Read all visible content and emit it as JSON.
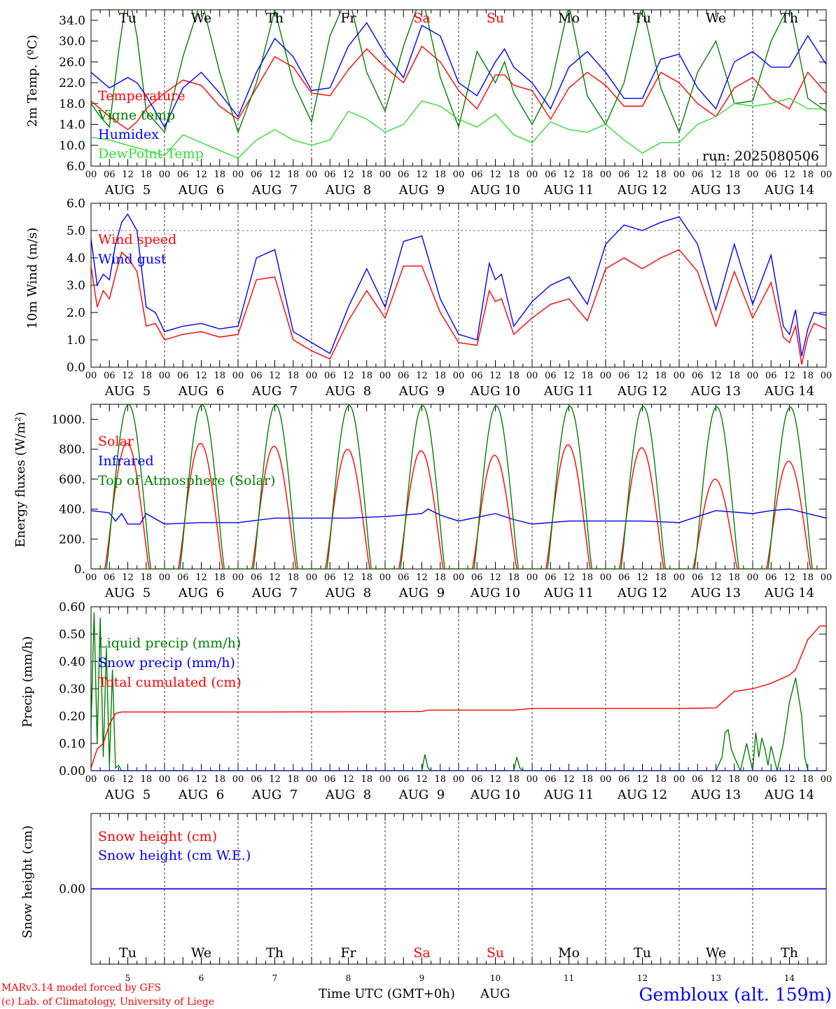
{
  "colors": {
    "red": "#ff0000",
    "green": "#008000",
    "blue": "#0000ff",
    "light_green": "#33dd33",
    "black": "#000000"
  },
  "x_axis": {
    "hour_labels": [
      "00",
      "06",
      "12",
      "18"
    ],
    "last_hour_label": "00",
    "day_labels": [
      "AUG  5",
      "AUG  6",
      "AUG  7",
      "AUG  8",
      "AUG  9",
      "AUG 10",
      "AUG 11",
      "AUG 12",
      "AUG 13",
      "AUG 14"
    ],
    "weekdays": [
      "Tu",
      "We",
      "Th",
      "Fr",
      "Sa",
      "Su",
      "Mo",
      "Tu",
      "We",
      "Th"
    ],
    "weekday_colors": [
      "#000000",
      "#000000",
      "#000000",
      "#000000",
      "#ff0000",
      "#ff0000",
      "#000000",
      "#000000",
      "#000000",
      "#000000"
    ],
    "day_numbers": [
      "5",
      "6",
      "7",
      "8",
      "9",
      "10",
      "11",
      "12",
      "13",
      "14"
    ],
    "title": "Time UTC (GMT+0h)",
    "month": "AUG"
  },
  "footer": {
    "model": "MARv3.14 model forced by GFS",
    "credit": "(c) Lab. of Climatology, University of Liege",
    "station": "Gembloux (alt. 159m)"
  },
  "chart_data": [
    {
      "type": "line",
      "id": "temperature",
      "ylabel": "2m Temp. (ºC)",
      "ylim": [
        6,
        36
      ],
      "ytick_values": [
        6,
        10,
        14,
        18,
        22,
        26,
        30,
        34
      ],
      "ytick_labels": [
        "6.0",
        "10.0",
        "14.0",
        "18.0",
        "22.0",
        "26.0",
        "30.0",
        "34.0"
      ],
      "x_unit": "hours since 2025-08-05 00 UTC",
      "xlim": [
        0,
        240
      ],
      "grid": "vertical dashed day lines",
      "run_label": "run: 2025080506",
      "series": [
        {
          "name": "Temperature",
          "color": "#ff0000",
          "x": [
            0,
            6,
            12,
            15,
            18,
            24,
            30,
            36,
            42,
            48,
            54,
            60,
            66,
            72,
            78,
            84,
            90,
            96,
            102,
            108,
            114,
            120,
            126,
            132,
            135,
            138,
            144,
            150,
            156,
            162,
            168,
            174,
            180,
            186,
            192,
            198,
            204,
            210,
            216,
            222,
            228,
            234,
            240
          ],
          "y": [
            18.5,
            15.5,
            13,
            14.5,
            17,
            20,
            22.5,
            21.5,
            17.5,
            15,
            21,
            27,
            25,
            20,
            19.5,
            24.5,
            28.5,
            25,
            22,
            29,
            26,
            20.5,
            17,
            23.5,
            23.5,
            21.5,
            20.5,
            15,
            21,
            24,
            21.5,
            17.5,
            17.5,
            24,
            22,
            18,
            15.5,
            21,
            23,
            19,
            17,
            24,
            20
          ]
        },
        {
          "name": "Vigne temp",
          "color": "#008000",
          "x": [
            0,
            3,
            6,
            9,
            12,
            15,
            18,
            24,
            30,
            36,
            42,
            48,
            54,
            60,
            66,
            72,
            78,
            84,
            90,
            96,
            102,
            108,
            114,
            120,
            126,
            132,
            135,
            138,
            144,
            150,
            156,
            162,
            168,
            174,
            180,
            186,
            192,
            198,
            204,
            210,
            216,
            222,
            228,
            234,
            240
          ],
          "y": [
            18,
            15.5,
            13.5,
            28,
            40,
            31,
            16.5,
            12.5,
            27,
            38,
            24,
            12.5,
            22,
            36,
            22,
            14.5,
            31,
            39,
            24,
            16.5,
            29,
            39,
            23,
            13.5,
            28,
            22,
            26,
            20,
            14,
            21,
            37,
            19.5,
            14,
            22,
            37,
            21,
            12.5,
            24,
            30,
            18,
            18.5,
            30,
            37,
            19,
            16.5
          ]
        },
        {
          "name": "Humidex",
          "color": "#0000ff",
          "x": [
            0,
            6,
            12,
            15,
            18,
            24,
            30,
            36,
            42,
            48,
            54,
            60,
            66,
            72,
            78,
            84,
            90,
            96,
            102,
            108,
            114,
            120,
            126,
            132,
            135,
            138,
            144,
            150,
            156,
            162,
            168,
            174,
            180,
            186,
            192,
            198,
            204,
            210,
            216,
            222,
            228,
            234,
            240
          ],
          "y": [
            24,
            21,
            23,
            22,
            19.5,
            13.5,
            21,
            24,
            20,
            15.5,
            24,
            30.5,
            27,
            20.5,
            21,
            29,
            33.5,
            27.5,
            23,
            33,
            31,
            22,
            19.5,
            26,
            28.5,
            25,
            22,
            17,
            25,
            28,
            24,
            19,
            19,
            26.5,
            27.5,
            21,
            17,
            26,
            28,
            25,
            25,
            31,
            25.5
          ]
        },
        {
          "name": "DewPoint Temp",
          "color": "#33dd33",
          "x": [
            0,
            6,
            12,
            18,
            24,
            30,
            36,
            42,
            48,
            54,
            60,
            66,
            72,
            78,
            84,
            90,
            96,
            102,
            108,
            114,
            120,
            126,
            132,
            138,
            144,
            150,
            156,
            162,
            168,
            174,
            180,
            186,
            192,
            198,
            204,
            210,
            216,
            222,
            228,
            234,
            240
          ],
          "y": [
            11.5,
            11,
            10,
            9,
            8,
            12,
            10.5,
            9,
            7.5,
            11,
            13,
            11,
            10,
            11,
            16.5,
            15,
            12.5,
            14,
            18.5,
            17.5,
            15,
            13.5,
            16,
            12,
            10.5,
            14.5,
            13,
            12.5,
            14,
            11,
            8.5,
            10.5,
            10.5,
            14,
            15.5,
            18,
            17.5,
            18,
            19,
            17,
            17
          ]
        }
      ]
    },
    {
      "type": "line",
      "id": "wind",
      "ylabel": "10m Wind (m/s)",
      "ylim": [
        0,
        6
      ],
      "ytick_values": [
        0,
        1,
        2,
        3,
        4,
        5,
        6
      ],
      "ytick_labels": [
        "0.0",
        "1.0",
        "2.0",
        "3.0",
        "4.0",
        "5.0",
        "6.0"
      ],
      "x_unit": "hours since 2025-08-05 00 UTC",
      "xlim": [
        0,
        240
      ],
      "reference_line": 5.0,
      "series": [
        {
          "name": "Wind speed",
          "color": "#ff0000",
          "x": [
            0,
            2,
            4,
            6,
            8,
            10,
            12,
            15,
            18,
            21,
            24,
            30,
            36,
            42,
            48,
            54,
            60,
            66,
            72,
            78,
            84,
            90,
            96,
            102,
            108,
            114,
            120,
            126,
            130,
            132,
            134,
            138,
            144,
            150,
            156,
            162,
            168,
            174,
            180,
            186,
            192,
            198,
            204,
            210,
            216,
            222,
            226,
            228,
            230,
            232,
            234,
            236,
            240
          ],
          "y": [
            3.7,
            2.2,
            2.8,
            2.5,
            3.4,
            4.2,
            4.0,
            3.5,
            1.5,
            1.6,
            1.0,
            1.2,
            1.3,
            1.1,
            1.2,
            3.2,
            3.3,
            1.0,
            0.6,
            0.3,
            1.7,
            2.8,
            1.8,
            3.7,
            3.7,
            2.0,
            0.9,
            0.8,
            2.8,
            2.4,
            2.5,
            1.2,
            1.8,
            2.3,
            2.5,
            1.7,
            3.6,
            4.0,
            3.6,
            4.0,
            4.3,
            3.5,
            1.5,
            3.5,
            1.8,
            3.1,
            1.1,
            0.9,
            1.5,
            0.1,
            1.1,
            1.6,
            1.4
          ]
        },
        {
          "name": "Wind gust",
          "color": "#0000ff",
          "x": [
            0,
            2,
            4,
            6,
            8,
            10,
            12,
            15,
            18,
            21,
            24,
            30,
            36,
            42,
            48,
            54,
            60,
            66,
            72,
            78,
            84,
            90,
            96,
            102,
            108,
            114,
            120,
            126,
            130,
            132,
            134,
            138,
            144,
            150,
            156,
            162,
            168,
            174,
            180,
            186,
            192,
            198,
            204,
            210,
            216,
            222,
            226,
            228,
            230,
            232,
            234,
            236,
            240
          ],
          "y": [
            4.7,
            3.0,
            3.4,
            3.2,
            4.5,
            5.3,
            5.6,
            5.0,
            2.2,
            2.0,
            1.3,
            1.5,
            1.6,
            1.4,
            1.5,
            4.0,
            4.3,
            1.3,
            0.9,
            0.5,
            2.2,
            3.6,
            2.2,
            4.6,
            4.8,
            2.5,
            1.2,
            1.0,
            3.8,
            3.2,
            3.4,
            1.5,
            2.4,
            3.0,
            3.3,
            2.3,
            4.5,
            5.2,
            5.0,
            5.3,
            5.5,
            4.5,
            2.1,
            4.5,
            2.3,
            4.1,
            1.5,
            1.2,
            2.1,
            0.4,
            1.4,
            2.0,
            1.9
          ]
        }
      ]
    },
    {
      "type": "line",
      "id": "energy",
      "ylabel": "Energy fluxes (W/m²)",
      "ylim": [
        0,
        1100
      ],
      "ytick_values": [
        0,
        200,
        400,
        600,
        800,
        1000
      ],
      "ytick_labels": [
        "0.",
        "200.",
        "400.",
        "600.",
        "800.",
        "1000."
      ],
      "x_unit": "hours since 2025-08-05 00 UTC",
      "xlim": [
        0,
        240
      ],
      "series": [
        {
          "name": "Solar",
          "color": "#ff0000",
          "daily_peak": [
            840,
            840,
            820,
            800,
            790,
            760,
            830,
            810,
            600,
            720
          ]
        },
        {
          "name": "Infrared",
          "color": "#0000ff",
          "x": [
            0,
            6,
            8,
            10,
            12,
            16,
            18,
            24,
            36,
            48,
            60,
            72,
            84,
            96,
            108,
            110,
            114,
            120,
            132,
            138,
            144,
            156,
            168,
            180,
            192,
            204,
            216,
            222,
            228,
            240
          ],
          "y": [
            390,
            375,
            320,
            370,
            300,
            300,
            370,
            300,
            310,
            310,
            340,
            340,
            340,
            350,
            370,
            400,
            360,
            320,
            370,
            330,
            300,
            320,
            320,
            320,
            310,
            390,
            370,
            390,
            400,
            340
          ]
        },
        {
          "name": "Top of Atmosphere (Solar)",
          "color": "#008000",
          "daily_peak": [
            1100,
            1098,
            1096,
            1094,
            1092,
            1090,
            1088,
            1086,
            1084,
            1082
          ]
        }
      ]
    },
    {
      "type": "line",
      "id": "precip",
      "ylabel": "Precip (mm/h)",
      "ylim": [
        0,
        0.6
      ],
      "ytick_values": [
        0,
        0.1,
        0.2,
        0.3,
        0.4,
        0.5,
        0.6
      ],
      "ytick_labels": [
        "0.00",
        "0.10",
        "0.20",
        "0.30",
        "0.40",
        "0.50",
        "0.60"
      ],
      "x_unit": "hours since 2025-08-05 00 UTC",
      "xlim": [
        0,
        240
      ],
      "series": [
        {
          "name": "Liquid precip (mm/h)",
          "color": "#008000",
          "x": [
            0,
            1,
            2,
            3,
            4,
            5,
            6,
            7,
            8,
            9,
            10,
            12,
            108,
            109,
            110,
            111,
            138,
            139,
            140,
            141,
            204,
            206,
            207,
            208,
            209,
            210,
            212,
            214,
            216,
            217,
            218,
            219,
            220,
            221,
            222,
            224,
            226,
            228,
            230,
            232,
            233,
            234,
            240
          ],
          "y": [
            0.15,
            0.58,
            0.1,
            0.56,
            0.05,
            0.45,
            0.02,
            0.37,
            0.01,
            0.02,
            0,
            0,
            0,
            0.06,
            0.01,
            0,
            0,
            0.05,
            0.01,
            0,
            0,
            0.05,
            0.14,
            0.15,
            0.08,
            0.05,
            0,
            0.1,
            0,
            0.14,
            0.05,
            0.12,
            0.08,
            0.02,
            0.09,
            0,
            0.1,
            0.25,
            0.34,
            0.2,
            0.05,
            0,
            0
          ]
        },
        {
          "name": "Snow precip (mm/h)",
          "color": "#0000ff",
          "x": [
            0,
            240
          ],
          "y": [
            0,
            0
          ]
        },
        {
          "name": "Total cumulated (cm)",
          "color": "#ff0000",
          "x": [
            0,
            2,
            4,
            6,
            8,
            10,
            12,
            24,
            48,
            96,
            108,
            110,
            114,
            138,
            144,
            168,
            192,
            204,
            208,
            210,
            216,
            222,
            228,
            230,
            234,
            238,
            240
          ],
          "y": [
            0.01,
            0.08,
            0.1,
            0.17,
            0.21,
            0.215,
            0.215,
            0.215,
            0.215,
            0.216,
            0.217,
            0.222,
            0.222,
            0.222,
            0.228,
            0.228,
            0.228,
            0.23,
            0.27,
            0.29,
            0.3,
            0.32,
            0.35,
            0.37,
            0.48,
            0.53,
            0.53
          ]
        }
      ]
    },
    {
      "type": "line",
      "id": "snow",
      "ylabel": "Snow height (cm)",
      "ylim": [
        -1,
        1
      ],
      "ytick_values": [
        0
      ],
      "ytick_labels": [
        "0.00"
      ],
      "x_unit": "hours since 2025-08-05 00 UTC",
      "xlim": [
        0,
        240
      ],
      "series": [
        {
          "name": "Snow height (cm)",
          "color": "#ff0000",
          "x": [
            0,
            240
          ],
          "y": [
            0,
            0
          ]
        },
        {
          "name": "Snow height (cm W.E.)",
          "color": "#0000ff",
          "x": [
            0,
            240
          ],
          "y": [
            0,
            0
          ]
        }
      ]
    }
  ]
}
